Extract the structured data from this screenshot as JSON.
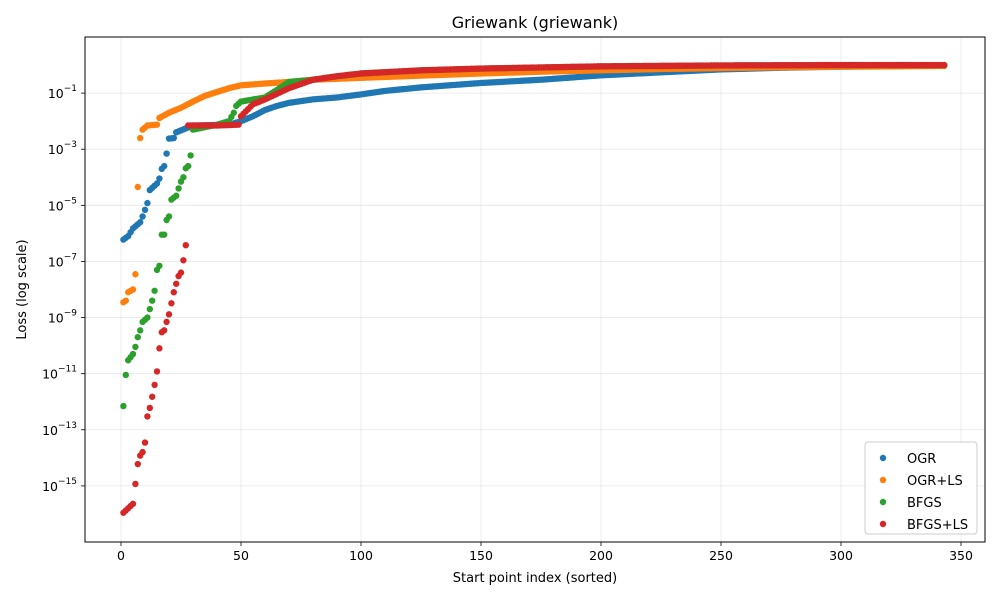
{
  "chart_data": {
    "type": "scatter",
    "title": "Griewank (griewank)",
    "xlabel": "Start point index (sorted)",
    "ylabel": "Loss (log scale)",
    "x_scale": "linear",
    "y_scale": "log",
    "xlim": [
      -15,
      360
    ],
    "ylim": [
      1e-17,
      10
    ],
    "x_ticks": [
      0,
      50,
      100,
      150,
      200,
      250,
      300,
      350
    ],
    "x_tick_labels": [
      "0",
      "50",
      "100",
      "150",
      "200",
      "250",
      "300",
      "350"
    ],
    "y_ticks_exp": [
      -15,
      -13,
      -11,
      -9,
      -7,
      -5,
      -3,
      -1
    ],
    "y_tick_labels": [
      "10^-15",
      "10^-13",
      "10^-11",
      "10^-9",
      "10^-7",
      "10^-5",
      "10^-3",
      "10^-1"
    ],
    "grid": true,
    "legend_position": "lower right",
    "n_points": 343,
    "series": [
      {
        "name": "OGR",
        "color": "#1f77b4",
        "key_points": [
          [
            1,
            6e-07
          ],
          [
            3,
            8e-07
          ],
          [
            5,
            1.5e-06
          ],
          [
            8,
            2.5e-06
          ],
          [
            9,
            4e-06
          ],
          [
            11,
            1.2e-05
          ],
          [
            12,
            3.5e-05
          ],
          [
            15,
            6e-05
          ],
          [
            16,
            9e-05
          ],
          [
            17,
            0.0002
          ],
          [
            18,
            0.00025
          ],
          [
            19,
            0.0007
          ],
          [
            20,
            0.0024
          ],
          [
            22,
            0.0025
          ],
          [
            23,
            0.004
          ],
          [
            28,
            0.006
          ],
          [
            30,
            0.007
          ],
          [
            45,
            0.0075
          ],
          [
            50,
            0.01
          ],
          [
            55,
            0.015
          ],
          [
            60,
            0.025
          ],
          [
            65,
            0.035
          ],
          [
            70,
            0.045
          ],
          [
            80,
            0.06
          ],
          [
            90,
            0.07
          ],
          [
            100,
            0.09
          ],
          [
            110,
            0.12
          ],
          [
            125,
            0.16
          ],
          [
            150,
            0.23
          ],
          [
            175,
            0.3
          ],
          [
            200,
            0.43
          ],
          [
            225,
            0.55
          ],
          [
            250,
            0.7
          ],
          [
            275,
            0.8
          ],
          [
            300,
            0.88
          ],
          [
            325,
            0.93
          ],
          [
            343,
            0.96
          ]
        ]
      },
      {
        "name": "OGR+LS",
        "color": "#ff7f0e",
        "key_points": [
          [
            1,
            3.5e-09
          ],
          [
            2,
            4e-09
          ],
          [
            3,
            8e-09
          ],
          [
            5,
            1e-08
          ],
          [
            6,
            3.5e-08
          ],
          [
            7,
            4.5e-05
          ],
          [
            8,
            0.0025
          ],
          [
            9,
            0.005
          ],
          [
            11,
            0.007
          ],
          [
            15,
            0.0075
          ],
          [
            16,
            0.013
          ],
          [
            20,
            0.02
          ],
          [
            25,
            0.03
          ],
          [
            30,
            0.05
          ],
          [
            35,
            0.08
          ],
          [
            40,
            0.11
          ],
          [
            45,
            0.15
          ],
          [
            50,
            0.19
          ],
          [
            60,
            0.22
          ],
          [
            70,
            0.25
          ],
          [
            80,
            0.3
          ],
          [
            100,
            0.35
          ],
          [
            125,
            0.42
          ],
          [
            150,
            0.5
          ],
          [
            175,
            0.58
          ],
          [
            200,
            0.65
          ],
          [
            225,
            0.72
          ],
          [
            250,
            0.78
          ],
          [
            275,
            0.83
          ],
          [
            300,
            0.87
          ],
          [
            325,
            0.9
          ],
          [
            343,
            0.93
          ]
        ]
      },
      {
        "name": "BFGS",
        "color": "#2ca02c",
        "key_points": [
          [
            1,
            7e-13
          ],
          [
            2,
            9e-12
          ],
          [
            3,
            3e-11
          ],
          [
            5,
            5e-11
          ],
          [
            6,
            9e-11
          ],
          [
            7,
            2e-10
          ],
          [
            8,
            3.5e-10
          ],
          [
            9,
            7e-10
          ],
          [
            11,
            1e-09
          ],
          [
            12,
            2e-09
          ],
          [
            13,
            4e-09
          ],
          [
            14,
            9e-09
          ],
          [
            15,
            5e-08
          ],
          [
            16,
            7e-08
          ],
          [
            17,
            9e-07
          ],
          [
            18,
            9e-07
          ],
          [
            19,
            3e-06
          ],
          [
            20,
            4e-06
          ],
          [
            21,
            1.6e-05
          ],
          [
            23,
            2.2e-05
          ],
          [
            24,
            4e-05
          ],
          [
            25,
            7e-05
          ],
          [
            26,
            0.0001
          ],
          [
            27,
            0.00021
          ],
          [
            28,
            0.00025
          ],
          [
            29,
            0.0006
          ],
          [
            30,
            0.005
          ],
          [
            40,
            0.0075
          ],
          [
            45,
            0.01
          ],
          [
            47,
            0.02
          ],
          [
            48,
            0.035
          ],
          [
            50,
            0.05
          ],
          [
            60,
            0.07
          ],
          [
            65,
            0.13
          ],
          [
            70,
            0.25
          ],
          [
            80,
            0.3
          ],
          [
            90,
            0.4
          ],
          [
            100,
            0.5
          ],
          [
            125,
            0.65
          ],
          [
            150,
            0.75
          ],
          [
            200,
            0.9
          ],
          [
            250,
            0.97
          ],
          [
            300,
            1
          ],
          [
            343,
            1
          ]
        ]
      },
      {
        "name": "BFGS+LS",
        "color": "#d62728",
        "key_points": [
          [
            1,
            1.1e-16
          ],
          [
            5,
            2.3e-16
          ],
          [
            7,
            6e-15
          ],
          [
            8,
            1.2e-14
          ],
          [
            9,
            1.6e-14
          ],
          [
            10,
            3.5e-14
          ],
          [
            11,
            3e-13
          ],
          [
            12,
            6e-13
          ],
          [
            13,
            1.5e-12
          ],
          [
            14,
            4e-12
          ],
          [
            15,
            1.2e-11
          ],
          [
            16,
            8e-11
          ],
          [
            17,
            3e-10
          ],
          [
            18,
            3.5e-10
          ],
          [
            19,
            7e-10
          ],
          [
            20,
            1.3e-09
          ],
          [
            22,
            8e-09
          ],
          [
            23,
            1.6e-08
          ],
          [
            24,
            3e-08
          ],
          [
            25,
            4e-08
          ],
          [
            26,
            1.1e-07
          ],
          [
            27,
            3.8e-07
          ],
          [
            28,
            0.007
          ],
          [
            40,
            0.007
          ],
          [
            49,
            0.0075
          ],
          [
            50,
            0.015
          ],
          [
            55,
            0.04
          ],
          [
            60,
            0.06
          ],
          [
            70,
            0.15
          ],
          [
            80,
            0.3
          ],
          [
            90,
            0.4
          ],
          [
            100,
            0.5
          ],
          [
            125,
            0.65
          ],
          [
            150,
            0.75
          ],
          [
            200,
            0.9
          ],
          [
            250,
            0.97
          ],
          [
            300,
            1
          ],
          [
            343,
            1
          ]
        ]
      }
    ]
  }
}
